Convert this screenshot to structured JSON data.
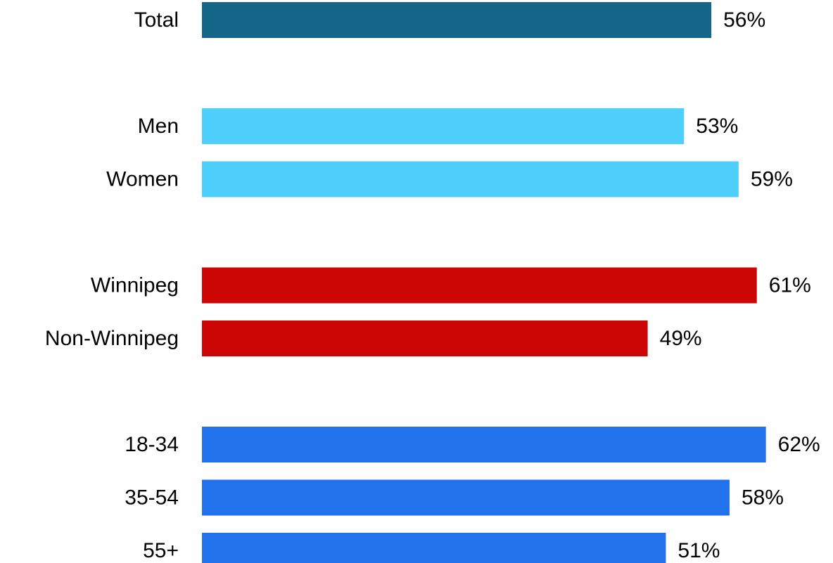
{
  "chart_data": {
    "type": "bar",
    "orientation": "horizontal",
    "categories": [
      "Total",
      "Men",
      "Women",
      "Winnipeg",
      "Non-Winnipeg",
      "18-34",
      "35-54",
      "55+"
    ],
    "values": [
      56,
      53,
      59,
      61,
      49,
      62,
      58,
      51
    ],
    "value_labels": [
      "56%",
      "53%",
      "59%",
      "61%",
      "49%",
      "62%",
      "58%",
      "51%"
    ],
    "groups": [
      {
        "categories": [
          "Total"
        ],
        "color": "#136688"
      },
      {
        "categories": [
          "Men",
          "Women"
        ],
        "color": "#4FCFFB"
      },
      {
        "categories": [
          "Winnipeg",
          "Non-Winnipeg"
        ],
        "color": "#CC0505"
      },
      {
        "categories": [
          "18-34",
          "35-54",
          "55+"
        ],
        "color": "#2272EC"
      }
    ],
    "xlim": [
      0,
      100
    ],
    "grid": false,
    "legend": "none"
  }
}
